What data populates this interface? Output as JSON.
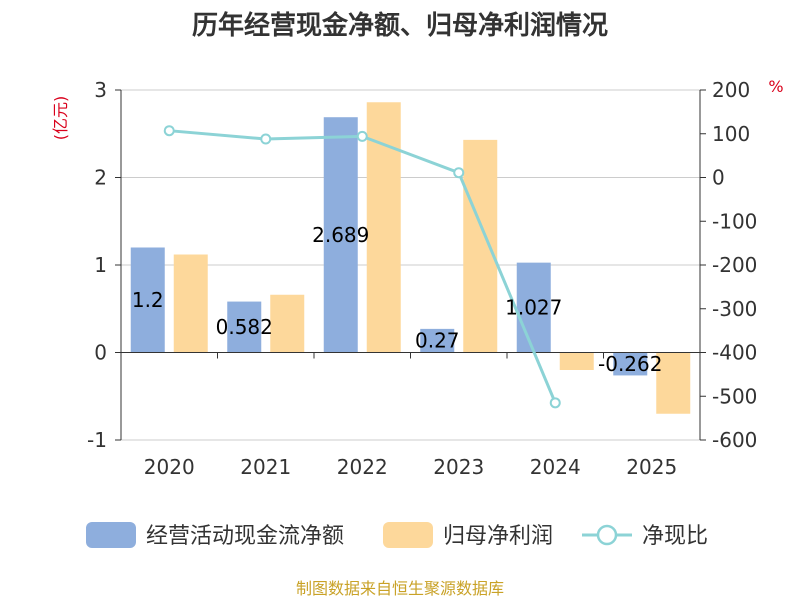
{
  "title": "历年经营现金净额、归母净利润情况",
  "source": "制图数据来自恒生聚源数据库",
  "chart_data": {
    "type": "bar",
    "categories": [
      "2020",
      "2021",
      "2022",
      "2023",
      "2024",
      "2025"
    ],
    "series": [
      {
        "name": "经营活动现金流净额",
        "type": "bar",
        "axis": "left",
        "color": "#8eaedd",
        "values": [
          1.2,
          0.582,
          2.689,
          0.27,
          1.027,
          -0.262
        ],
        "labels": [
          "1.2",
          "0.582",
          "2.689",
          "0.27",
          "1.027",
          "-0.262"
        ]
      },
      {
        "name": "归母净利润",
        "type": "bar",
        "axis": "left",
        "color": "#fdd89b",
        "values": [
          1.12,
          0.66,
          2.86,
          2.43,
          -0.2,
          -0.7
        ]
      },
      {
        "name": "净现比",
        "type": "line",
        "axis": "right",
        "color": "#8cd3d6",
        "values": [
          107,
          88,
          94,
          11,
          -515,
          null
        ]
      }
    ],
    "y_left": {
      "unit": "(亿元)",
      "min": -1,
      "max": 3,
      "ticks": [
        "-1",
        "0",
        "1",
        "2",
        "3"
      ]
    },
    "y_right": {
      "unit": "%",
      "min": -600,
      "max": 200,
      "ticks": [
        "-600",
        "-500",
        "-400",
        "-300",
        "-200",
        "-100",
        "0",
        "100",
        "200"
      ]
    },
    "grid": true,
    "legend_position": "bottom"
  }
}
